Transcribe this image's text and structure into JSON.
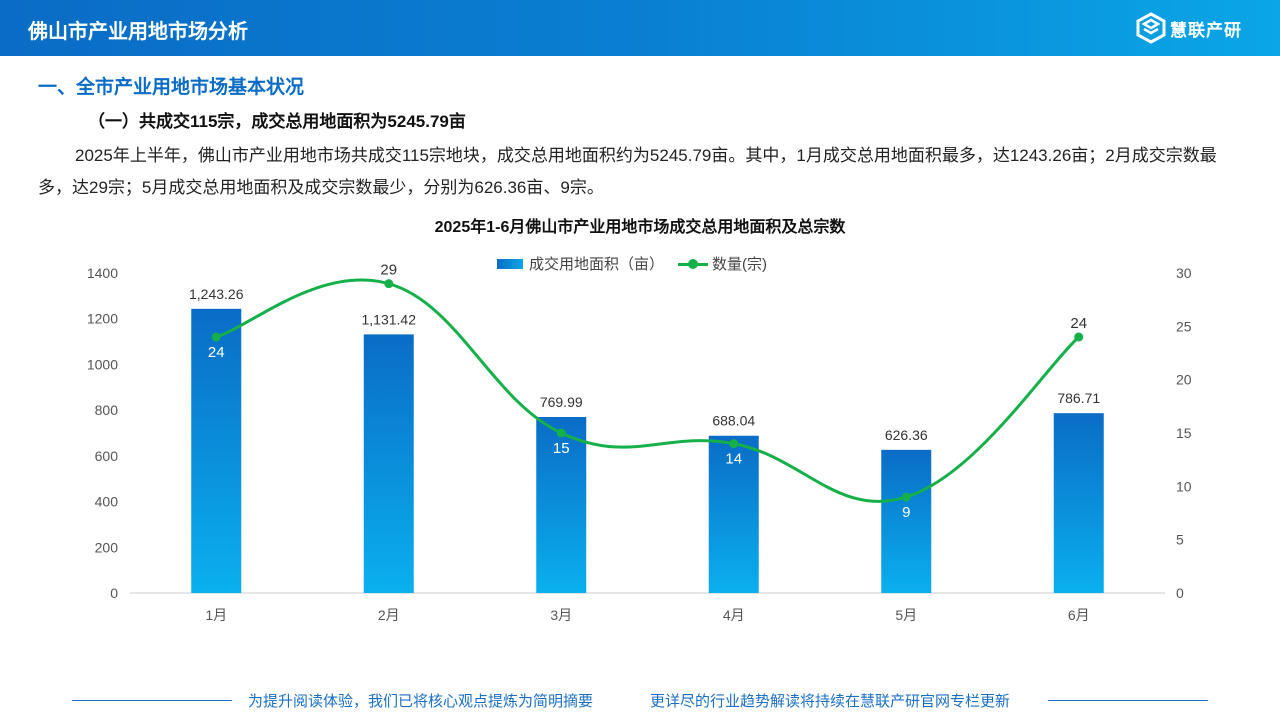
{
  "header": {
    "title": "佛山市产业用地市场分析",
    "logo_text": "慧联产研"
  },
  "section": {
    "heading": "一、全市产业用地市场基本状况",
    "subheading": "（一）共成交115宗，成交总用地面积为5245.79亩"
  },
  "paragraph": "2025年上半年，佛山市产业用地市场共成交115宗地块，成交总用地面积约为5245.79亩。其中，1月成交总用地面积最多，达1243.26亩；2月成交宗数最多，达29宗；5月成交总用地面积及成交宗数最少，分别为626.36亩、9宗。",
  "chart_data": {
    "type": "bar+line",
    "title": "2025年1-6月佛山市产业用地市场成交总用地面积及总宗数",
    "categories": [
      "1月",
      "2月",
      "3月",
      "4月",
      "5月",
      "6月"
    ],
    "series": [
      {
        "name": "成交用地面积（亩）",
        "type": "bar",
        "axis": "left",
        "values": [
          1243.26,
          1131.42,
          769.99,
          688.04,
          626.36,
          786.71
        ],
        "labels": [
          "1,243.26",
          "1,131.42",
          "769.99",
          "688.04",
          "626.36",
          "786.71"
        ]
      },
      {
        "name": "数量(宗)",
        "type": "line",
        "axis": "right",
        "values": [
          24,
          29,
          15,
          14,
          9,
          24
        ]
      }
    ],
    "left_axis": {
      "ylim": [
        0,
        1400
      ],
      "ticks": [
        "0",
        "200",
        "400",
        "600",
        "800",
        "1000",
        "1200",
        "1400"
      ]
    },
    "right_axis": {
      "ylim": [
        0,
        30
      ],
      "ticks": [
        "0",
        "5",
        "10",
        "15",
        "20",
        "25",
        "30"
      ]
    },
    "legend": "top",
    "colors": {
      "bar_top": "#0a6cc6",
      "bar_bottom": "#0ab0ee",
      "line": "#15b04a"
    }
  },
  "footer": {
    "left": "为提升阅读体验，我们已将核心观点提炼为简明摘要",
    "right": "更详尽的行业趋势解读将持续在慧联产研官网专栏更新"
  }
}
